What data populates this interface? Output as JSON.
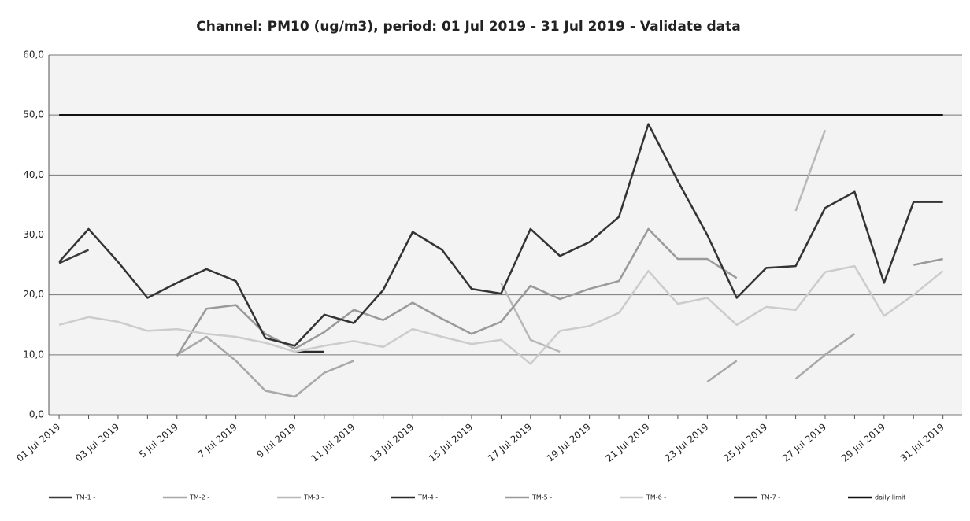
{
  "chart_data": {
    "type": "line",
    "title": "Channel: PM10 (ug/m3), period: 01 Jul 2019 - 31 Jul 2019 - Validate data",
    "categories": [
      "01 Jul 2019",
      null,
      "03 Jul 2019",
      null,
      "5 Jul 2019",
      null,
      "7 Jul 2019",
      null,
      "9 Jul 2019",
      null,
      "11 Jul 2019",
      null,
      "13 Jul 2019",
      null,
      "15 Jul 2019",
      null,
      "17 Jul 2019",
      null,
      "19 Jul 2019",
      null,
      "21 Jul 2019",
      null,
      "23 Jul 2019",
      null,
      "25 Jul 2019",
      null,
      "27 Jul 2019",
      null,
      "29 Jul 2019",
      null,
      "31 Jul 2019"
    ],
    "ylim": [
      0,
      60
    ],
    "yticks": [
      {
        "value": 0,
        "label": "0,0"
      },
      {
        "value": 10,
        "label": "10,0"
      },
      {
        "value": 20,
        "label": "20,0"
      },
      {
        "value": 30,
        "label": "30,0"
      },
      {
        "value": 40,
        "label": "40,0"
      },
      {
        "value": 50,
        "label": "50,0"
      },
      {
        "value": 60,
        "label": "60,0"
      }
    ],
    "grid": true,
    "legend": "bottom",
    "series": [
      {
        "name": "TM-1 -",
        "color": "#3a3a3a",
        "values": [
          25.3,
          27.5,
          null,
          null,
          null,
          null,
          null,
          null,
          null,
          null,
          null,
          null,
          null,
          null,
          null,
          null,
          null,
          null,
          null,
          null,
          null,
          null,
          null,
          null,
          null,
          null,
          null,
          null,
          null,
          null,
          null
        ]
      },
      {
        "name": "TM-2 -",
        "color": "#a8a8a8",
        "values": [
          null,
          null,
          null,
          null,
          10,
          13,
          9,
          4,
          3,
          7,
          9,
          null,
          null,
          null,
          null,
          null,
          null,
          null,
          null,
          null,
          null,
          null,
          5.5,
          9,
          null,
          6,
          10,
          13.5,
          null,
          null,
          null
        ]
      },
      {
        "name": "TM-3 -",
        "color": "#b8b8b8",
        "values": [
          null,
          null,
          null,
          null,
          null,
          null,
          null,
          null,
          null,
          null,
          null,
          null,
          null,
          null,
          null,
          22,
          12.5,
          10.5,
          null,
          null,
          null,
          null,
          null,
          null,
          null,
          34,
          47.5,
          null,
          null,
          null,
          null
        ]
      },
      {
        "name": "TM-4 -",
        "color": "#2a2a2a",
        "values": [
          null,
          null,
          null,
          null,
          null,
          null,
          null,
          null,
          10.5,
          10.5,
          null,
          null,
          null,
          null,
          null,
          null,
          null,
          null,
          null,
          null,
          null,
          null,
          null,
          null,
          null,
          null,
          null,
          null,
          null,
          null,
          null
        ]
      },
      {
        "name": "TM-5 -",
        "color": "#9a9a9a",
        "values": [
          null,
          null,
          null,
          null,
          9.8,
          17.7,
          18.3,
          13.5,
          11,
          13.8,
          17.5,
          15.8,
          18.7,
          16,
          13.5,
          15.5,
          21.5,
          19.3,
          21,
          22.3,
          31,
          26,
          26,
          22.8,
          null,
          null,
          null,
          null,
          null,
          25,
          26
        ]
      },
      {
        "name": "TM-6 -",
        "color": "#cccccc",
        "values": [
          15,
          16.3,
          15.5,
          14,
          14.3,
          13.5,
          13,
          12,
          10.5,
          11.5,
          12.3,
          11.3,
          14.3,
          13,
          11.8,
          12.5,
          8.5,
          14,
          14.8,
          17,
          24,
          18.5,
          19.5,
          15,
          18,
          17.5,
          23.8,
          24.8,
          16.5,
          20,
          24
        ]
      },
      {
        "name": "TM-7 -",
        "color": "#333333",
        "values": [
          25.5,
          31,
          25.5,
          19.5,
          22,
          24.3,
          22.3,
          12.8,
          11.5,
          16.7,
          15.3,
          20.8,
          30.5,
          27.5,
          21,
          20.2,
          31,
          26.5,
          28.8,
          33,
          48.5,
          39,
          30,
          19.5,
          24.5,
          24.8,
          34.5,
          37.2,
          22,
          35.5,
          35.5
        ]
      },
      {
        "name": "daily limit",
        "color": "#111111",
        "values": [
          50,
          50,
          50,
          50,
          50,
          50,
          50,
          50,
          50,
          50,
          50,
          50,
          50,
          50,
          50,
          50,
          50,
          50,
          50,
          50,
          50,
          50,
          50,
          50,
          50,
          50,
          50,
          50,
          50,
          50,
          50
        ]
      }
    ]
  }
}
